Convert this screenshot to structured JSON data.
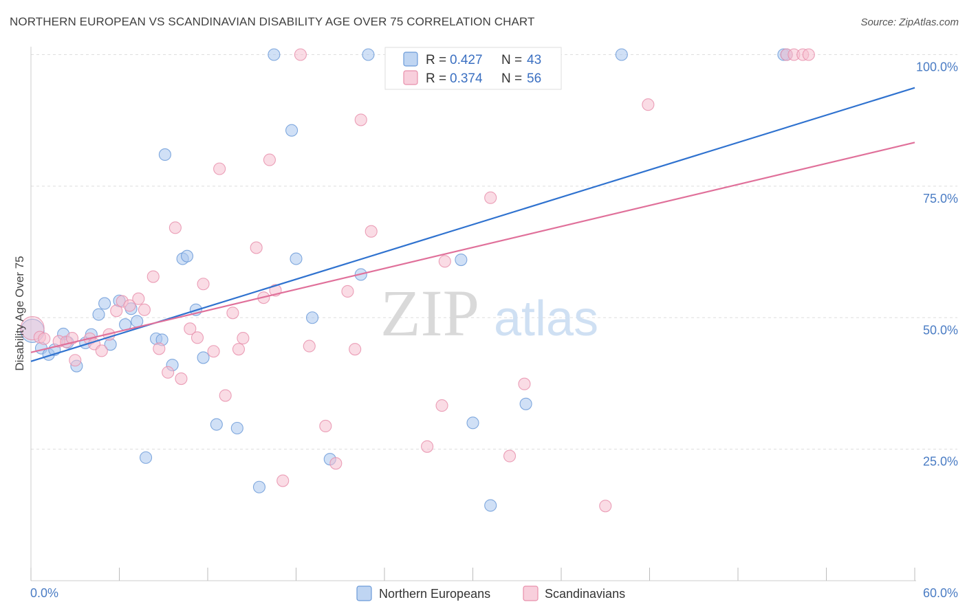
{
  "header": {
    "title": "NORTHERN EUROPEAN VS SCANDINAVIAN DISABILITY AGE OVER 75 CORRELATION CHART",
    "source": "Source: ZipAtlas.com"
  },
  "watermark": {
    "zip": "ZIP",
    "atlas": "atlas"
  },
  "colors": {
    "blue_fill": "#aac7ee",
    "blue_stroke": "#6b9ad8",
    "blue_line": "#2f72cf",
    "pink_fill": "#f6bfd0",
    "pink_stroke": "#e88fab",
    "pink_line": "#e0709a",
    "grid": "#dddddd",
    "axis_label": "#4a7cc4"
  },
  "legend": {
    "rows": [
      {
        "r_label": "R = ",
        "r_value": "0.427",
        "n_label": "N = ",
        "n_value": "43"
      },
      {
        "r_label": "R = ",
        "r_value": "0.374",
        "n_label": "N = ",
        "n_value": "56"
      }
    ]
  },
  "chart_data": {
    "type": "scatter",
    "title": "NORTHERN EUROPEAN VS SCANDINAVIAN DISABILITY AGE OVER 75 CORRELATION CHART",
    "xlabel": "",
    "ylabel": "Disability Age Over 75",
    "xlim": [
      0,
      60
    ],
    "ylim": [
      0,
      103
    ],
    "x_tick_labels": {
      "left": "0.0%",
      "right": "60.0%"
    },
    "y_ticks": [
      {
        "value": 25,
        "label": "25.0%"
      },
      {
        "value": 50,
        "label": "50.0%"
      },
      {
        "value": 75,
        "label": "75.0%"
      },
      {
        "value": 100,
        "label": "100.0%"
      }
    ],
    "grid": true,
    "legend_position": "top-center",
    "series": [
      {
        "name": "Northern Europeans",
        "color": "#aac7ee",
        "r": 0.427,
        "n": 43,
        "trend": {
          "x": [
            0,
            60
          ],
          "y": [
            41.7,
            93.7
          ]
        },
        "points": [
          [
            0.1,
            47.5
          ],
          [
            0.7,
            44.2
          ],
          [
            1.2,
            43.0
          ],
          [
            1.6,
            43.9
          ],
          [
            2.2,
            46.9
          ],
          [
            2.5,
            45.3
          ],
          [
            3.1,
            40.8
          ],
          [
            3.7,
            45.2
          ],
          [
            4.1,
            46.8
          ],
          [
            4.6,
            50.6
          ],
          [
            5.0,
            52.7
          ],
          [
            5.4,
            44.9
          ],
          [
            6.0,
            53.2
          ],
          [
            6.4,
            48.7
          ],
          [
            6.8,
            51.7
          ],
          [
            7.2,
            49.3
          ],
          [
            7.8,
            23.4
          ],
          [
            8.5,
            46.0
          ],
          [
            8.9,
            45.8
          ],
          [
            9.1,
            81.0
          ],
          [
            9.6,
            41.0
          ],
          [
            10.3,
            61.2
          ],
          [
            10.6,
            61.7
          ],
          [
            11.2,
            51.5
          ],
          [
            11.7,
            42.4
          ],
          [
            12.6,
            29.7
          ],
          [
            14.0,
            29.0
          ],
          [
            15.5,
            17.8
          ],
          [
            16.5,
            100.0
          ],
          [
            17.7,
            85.6
          ],
          [
            18.0,
            61.2
          ],
          [
            19.1,
            50.0
          ],
          [
            20.3,
            23.1
          ],
          [
            22.4,
            58.2
          ],
          [
            22.9,
            100.0
          ],
          [
            25.7,
            100.0
          ],
          [
            29.2,
            61.0
          ],
          [
            30.0,
            30.0
          ],
          [
            31.2,
            14.3
          ],
          [
            33.6,
            33.6
          ],
          [
            40.1,
            100.0
          ],
          [
            51.1,
            100.0
          ],
          [
            51.3,
            100.0
          ]
        ]
      },
      {
        "name": "Scandinavians",
        "color": "#f6bfd0",
        "r": 0.374,
        "n": 56,
        "trend": {
          "x": [
            0,
            60
          ],
          "y": [
            43.4,
            83.3
          ]
        },
        "points": [
          [
            0.1,
            48.0
          ],
          [
            0.6,
            46.3
          ],
          [
            0.9,
            46.0
          ],
          [
            1.9,
            45.5
          ],
          [
            2.4,
            45.4
          ],
          [
            2.8,
            46.1
          ],
          [
            3.0,
            41.9
          ],
          [
            4.0,
            46.0
          ],
          [
            4.3,
            45.0
          ],
          [
            4.8,
            43.7
          ],
          [
            5.3,
            46.8
          ],
          [
            5.8,
            51.3
          ],
          [
            6.2,
            53.1
          ],
          [
            6.7,
            52.3
          ],
          [
            7.3,
            53.6
          ],
          [
            7.7,
            51.5
          ],
          [
            8.3,
            57.8
          ],
          [
            8.7,
            44.1
          ],
          [
            9.3,
            39.6
          ],
          [
            9.8,
            67.1
          ],
          [
            10.2,
            38.4
          ],
          [
            10.8,
            47.9
          ],
          [
            11.3,
            46.2
          ],
          [
            11.7,
            56.4
          ],
          [
            12.4,
            43.6
          ],
          [
            12.8,
            78.3
          ],
          [
            13.2,
            35.2
          ],
          [
            13.7,
            50.9
          ],
          [
            14.1,
            44.0
          ],
          [
            14.4,
            46.1
          ],
          [
            15.3,
            63.3
          ],
          [
            15.8,
            53.8
          ],
          [
            16.2,
            80.0
          ],
          [
            16.6,
            55.2
          ],
          [
            17.1,
            19.0
          ],
          [
            18.3,
            100.0
          ],
          [
            18.9,
            44.6
          ],
          [
            20.0,
            29.4
          ],
          [
            20.7,
            22.3
          ],
          [
            21.5,
            55.0
          ],
          [
            22.0,
            44.0
          ],
          [
            22.4,
            87.6
          ],
          [
            23.1,
            66.4
          ],
          [
            26.0,
            100.0
          ],
          [
            26.9,
            25.5
          ],
          [
            27.9,
            33.3
          ],
          [
            28.1,
            60.7
          ],
          [
            31.2,
            72.8
          ],
          [
            32.5,
            23.7
          ],
          [
            33.5,
            37.4
          ],
          [
            39.0,
            14.2
          ],
          [
            41.9,
            90.5
          ],
          [
            51.3,
            100.0
          ],
          [
            51.8,
            100.0
          ],
          [
            52.4,
            100.0
          ],
          [
            52.8,
            100.0
          ]
        ]
      }
    ]
  }
}
